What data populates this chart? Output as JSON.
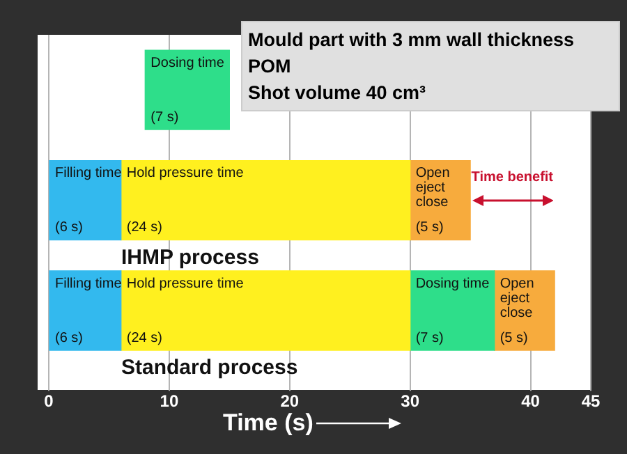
{
  "chart_data": {
    "type": "bar",
    "orientation": "horizontal",
    "title": "Mould part with 3 mm wall thickness",
    "subtitle": "POM\nShot volume 40 cm³",
    "xlabel": "Time (s)",
    "categories": [
      null,
      null,
      null
    ],
    "series": [
      {
        "name": "Filling time",
        "color": "#33b9ee",
        "base": [
          null,
          0,
          0
        ],
        "values": [
          null,
          6,
          6
        ],
        "value_labels": [
          null,
          "(6 s)",
          "(6 s)"
        ]
      },
      {
        "name": "Hold pressure time",
        "color": "#fff01f",
        "base": [
          null,
          6,
          6
        ],
        "values": [
          null,
          24,
          24
        ],
        "value_labels": [
          null,
          "(24 s)",
          "(24 s)"
        ]
      },
      {
        "name": "Dosing time",
        "color": "#2ede8a",
        "base": [
          8,
          null,
          30
        ],
        "values": [
          7,
          null,
          7
        ],
        "value_labels": [
          "(7 s)",
          null,
          "(7 s)"
        ]
      },
      {
        "name": "Open eject close",
        "color": "#f7ab3d",
        "base": [
          null,
          30,
          37
        ],
        "values": [
          null,
          5,
          5
        ],
        "value_labels": [
          null,
          "(5 s)",
          "(5 s)"
        ]
      }
    ],
    "annotations": [
      "IHMP process",
      "Standard process",
      "Time benefit"
    ],
    "xlim": [
      0,
      45
    ],
    "xticks": [
      0,
      10,
      20,
      30,
      40,
      45
    ],
    "grid": "x",
    "tick_labels": "x",
    "legend": false
  }
}
